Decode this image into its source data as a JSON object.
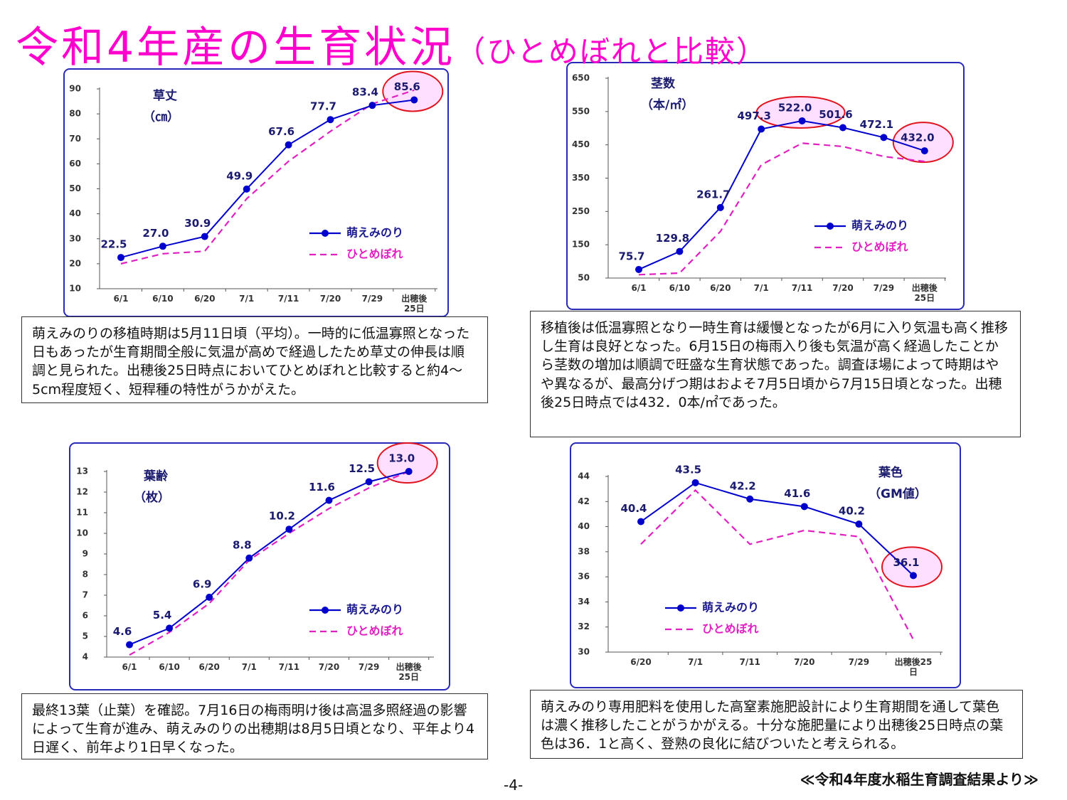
{
  "title": "令和4年産の生育状況",
  "subtitle": "（ひとめぼれと比較）",
  "notes": [
    "萌えみのりの移植時期は5月11日頃（平均）。一時的に低温寡照となった日もあったが生育期間全般に気温が高めで経過したため草丈の伸長は順調と見られた。出穂後25日時点においてひとめぼれと比較すると約4～5cm程度短く、短稈種の特性がうかがえた。",
    "移植後は低温寡照となり一時生育は緩慢となったが6月に入り気温も高く推移し生育は良好となった。6月15日の梅雨入り後も気温が高く経過したことから茎数の増加は順調で旺盛な生育状態であった。調査ほ場によって時期はやや異なるが、最高分げつ期はおよそ7月5日頃から7月15日頃となった。出穂後25日時点では432．0本/㎡であった。",
    "最終13葉（止葉）を確認。7月16日の梅雨明け後は高温多照経過の影響によって生育が進み、萌えみのりの出穂期は8月5日頃となり、平年より4日遅く、前年より1日早くなった。",
    "萌えみのり専用肥料を使用した高窒素施肥設計により生育期間を通して葉色は濃く推移したことがうかがえる。十分な施肥量により出穂後25日時点の葉色は36．1と高く、登熟の良化に結びついたと考えられる。"
  ],
  "page_number": "-4-",
  "source": "≪令和4年度水稲生育調査結果より≫",
  "chart_data": [
    {
      "type": "line",
      "label": "草丈",
      "unit": "（㎝）",
      "categories": [
        "6/1",
        "6/10",
        "6/20",
        "7/1",
        "7/11",
        "7/20",
        "7/29",
        "出穂後\n25日"
      ],
      "series": [
        {
          "name": "萌えみのり",
          "color": "#0000cc",
          "values": [
            22.5,
            27.0,
            30.9,
            49.9,
            67.6,
            77.7,
            83.4,
            85.6
          ],
          "value_labels": [
            "22.5",
            "27.0",
            "30.9",
            "49.9",
            "67.6",
            "77.7",
            "83.4",
            "85.6"
          ]
        },
        {
          "name": "ひとめぼれ",
          "color": "#e020c0",
          "dashed": true,
          "values": [
            20,
            24,
            25,
            46,
            61,
            73,
            84,
            89.5
          ]
        }
      ],
      "highlight": [
        7
      ],
      "ylim": [
        10,
        90
      ],
      "yticks": [
        10,
        20,
        30,
        40,
        50,
        60,
        70,
        80,
        90
      ],
      "grid": false
    },
    {
      "type": "line",
      "label": "茎数",
      "unit": "（本/㎡）",
      "categories": [
        "6/1",
        "6/10",
        "6/20",
        "7/1",
        "7/11",
        "7/20",
        "7/29",
        "出穂後\n25日"
      ],
      "series": [
        {
          "name": "萌えみのり",
          "color": "#0000cc",
          "values": [
            75.7,
            129.8,
            261.7,
            497.3,
            522.0,
            501.6,
            472.1,
            432.0
          ],
          "value_labels": [
            "75.7",
            "129.8",
            "261.7",
            "497.3",
            "522.0",
            "501.6",
            "472.1",
            "432.0"
          ]
        },
        {
          "name": "ひとめぼれ",
          "color": "#e020c0",
          "dashed": true,
          "values": [
            60,
            65,
            190,
            390,
            455,
            445,
            415,
            400
          ]
        }
      ],
      "highlight": [
        4,
        7
      ],
      "ylim": [
        50,
        650
      ],
      "yticks": [
        50,
        150,
        250,
        350,
        450,
        550,
        650
      ],
      "grid": false
    },
    {
      "type": "line",
      "label": "葉齢",
      "unit": "（枚）",
      "categories": [
        "6/1",
        "6/10",
        "6/20",
        "7/1",
        "7/11",
        "7/20",
        "7/29",
        "出穂後\n25日"
      ],
      "series": [
        {
          "name": "萌えみのり",
          "color": "#0000cc",
          "values": [
            4.6,
            5.4,
            6.9,
            8.8,
            10.2,
            11.6,
            12.5,
            13.0
          ],
          "value_labels": [
            "4.6",
            "5.4",
            "6.9",
            "8.8",
            "10.2",
            "11.6",
            "12.5",
            "13.0"
          ]
        },
        {
          "name": "ひとめぼれ",
          "color": "#e020c0",
          "dashed": true,
          "values": [
            4.1,
            5.2,
            6.6,
            8.7,
            10.0,
            11.2,
            12.2,
            13.0
          ]
        }
      ],
      "highlight": [
        7
      ],
      "ylim": [
        4,
        13
      ],
      "yticks": [
        4,
        5,
        6,
        7,
        8,
        9,
        10,
        11,
        12,
        13
      ],
      "grid": false
    },
    {
      "type": "line",
      "label": "葉色",
      "unit": "（GM値）",
      "categories": [
        "6/20",
        "7/1",
        "7/11",
        "7/20",
        "7/29",
        "出穂後25\n日"
      ],
      "series": [
        {
          "name": "萌えみのり",
          "color": "#0000cc",
          "values": [
            40.4,
            43.5,
            42.2,
            41.6,
            40.2,
            36.1
          ],
          "value_labels": [
            "40.4",
            "43.5",
            "42.2",
            "41.6",
            "40.2",
            "36.1"
          ]
        },
        {
          "name": "ひとめぼれ",
          "color": "#e020c0",
          "dashed": true,
          "values": [
            38.6,
            42.9,
            38.6,
            39.7,
            39.2,
            31.0
          ]
        }
      ],
      "highlight": [
        5
      ],
      "ylim": [
        30,
        44
      ],
      "yticks": [
        30,
        32,
        34,
        36,
        38,
        40,
        42,
        44
      ],
      "grid": false
    }
  ]
}
